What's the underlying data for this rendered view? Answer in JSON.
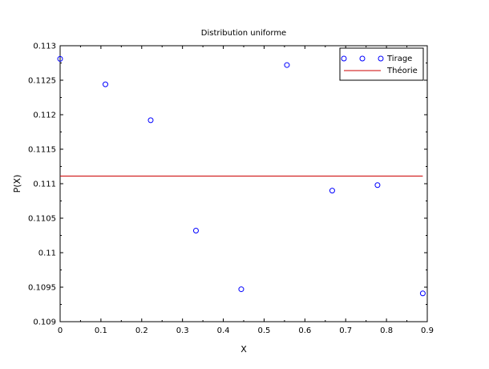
{
  "chart_data": {
    "type": "scatter",
    "title": "Distribution uniforme",
    "xlabel": "X",
    "ylabel": "P(X)",
    "xlim": [
      0,
      0.9
    ],
    "ylim": [
      0.109,
      0.113
    ],
    "xticks": [
      "0",
      "0.1",
      "0.2",
      "0.3",
      "0.4",
      "0.5",
      "0.6",
      "0.7",
      "0.8",
      "0.9"
    ],
    "yticks": [
      "0.109",
      "0.1095",
      "0.11",
      "0.1105",
      "0.111",
      "0.1115",
      "0.112",
      "0.1125",
      "0.113"
    ],
    "grid": false,
    "legend_position": "top-right",
    "series": [
      {
        "name": "Tirage",
        "kind": "scatter",
        "marker": "circle-open",
        "color": "#0000ff",
        "x": [
          0,
          0.111,
          0.222,
          0.333,
          0.444,
          0.556,
          0.667,
          0.778,
          0.889
        ],
        "y": [
          0.11281,
          0.11244,
          0.11192,
          0.11032,
          0.10947,
          0.11272,
          0.1109,
          0.11098,
          0.10941
        ]
      },
      {
        "name": "Théorie",
        "kind": "line",
        "color": "#cc0000",
        "x": [
          0,
          0.889
        ],
        "y": [
          0.11111,
          0.11111
        ]
      }
    ]
  }
}
